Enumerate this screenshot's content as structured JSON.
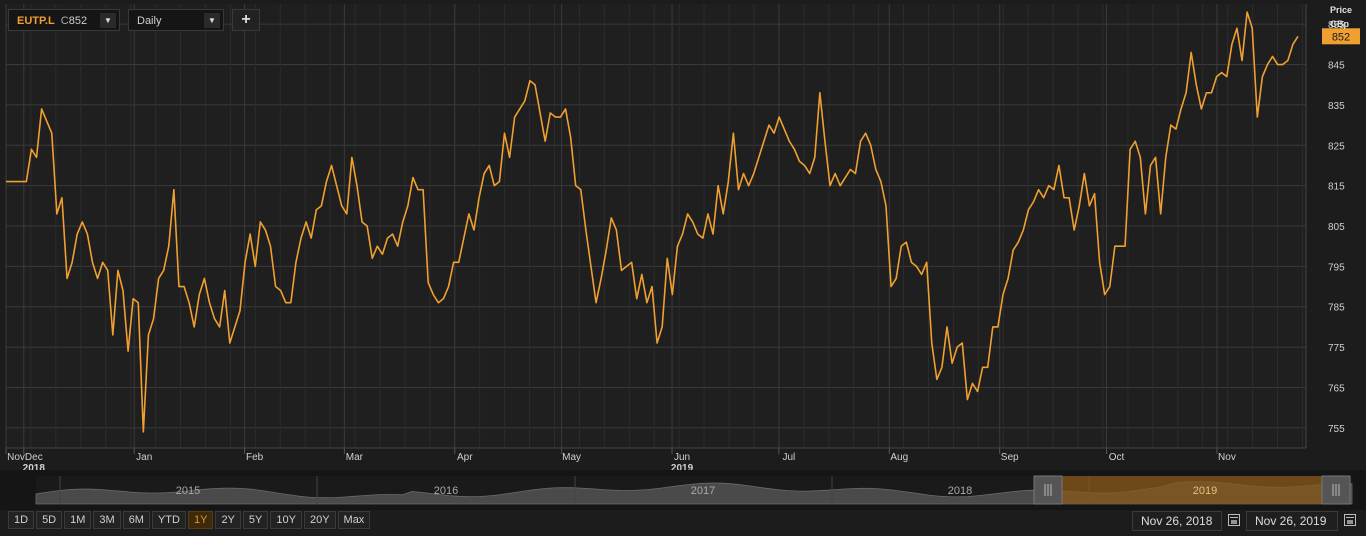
{
  "toolbar": {
    "symbol": "EUTP.L",
    "close_prefix": "C",
    "close_value": "852",
    "interval": "Daily",
    "add_label": "+"
  },
  "axis": {
    "title": "Price",
    "unit": "GBp"
  },
  "ranges": [
    "1D",
    "5D",
    "1M",
    "3M",
    "6M",
    "YTD",
    "1Y",
    "2Y",
    "5Y",
    "10Y",
    "20Y",
    "Max"
  ],
  "active_range": "1Y",
  "date_from": "Nov 26, 2018",
  "date_to": "Nov 26, 2019",
  "colors": {
    "line": "#f0a030",
    "background": "#1c1c1c",
    "grid": "#3a3a3a",
    "last_price_badge": "#f0a030"
  },
  "navigator": {
    "years": [
      "2015",
      "2016",
      "2017",
      "2018",
      "2019"
    ],
    "selected": "2019"
  },
  "chart_data": {
    "type": "line",
    "series": [
      {
        "values": [
          816,
          816,
          816,
          816,
          816,
          824,
          822,
          834,
          831,
          828,
          808,
          812,
          792,
          796,
          803,
          806,
          803,
          796,
          792,
          796,
          794,
          778,
          794,
          789,
          774,
          787,
          786,
          754,
          778,
          782,
          792,
          794,
          800,
          814,
          790,
          790,
          786,
          780,
          788,
          792,
          786,
          782,
          780,
          789,
          776,
          780,
          784,
          796,
          803,
          795,
          806,
          804,
          800,
          790,
          789,
          786,
          786,
          796,
          802,
          806,
          802,
          809,
          810,
          816,
          820,
          815,
          810,
          808,
          822,
          815,
          806,
          805,
          797,
          800,
          798,
          802,
          803,
          800,
          806,
          810,
          817,
          814,
          814,
          791,
          788,
          786,
          787,
          790,
          796,
          796,
          802,
          808,
          804,
          812,
          818,
          820,
          815,
          816,
          828,
          822,
          832,
          834,
          836,
          841,
          840,
          833,
          826,
          833,
          832,
          832,
          834,
          827,
          815,
          814,
          804,
          795,
          786,
          792,
          799,
          807,
          804,
          794,
          795,
          796,
          787,
          793,
          786,
          790,
          776,
          780,
          797,
          788,
          800,
          803,
          808,
          806,
          803,
          802,
          808,
          803,
          815,
          808,
          816,
          828,
          814,
          818,
          815,
          818,
          822,
          826,
          830,
          828,
          832,
          829,
          826,
          824,
          821,
          820,
          818,
          822,
          838,
          826,
          815,
          818,
          815,
          817,
          819,
          818,
          826,
          828,
          825,
          819,
          816,
          810,
          790,
          792,
          800,
          801,
          796,
          795,
          793,
          796,
          776,
          767,
          770,
          780,
          771,
          775,
          776,
          762,
          766,
          764,
          770,
          770,
          780,
          780,
          788,
          792,
          799,
          801,
          804,
          809,
          811,
          814,
          812,
          815,
          814,
          820,
          812,
          812,
          804,
          810,
          818,
          810,
          813,
          796,
          788,
          790,
          800,
          800,
          800,
          824,
          826,
          822,
          808,
          820,
          822,
          808,
          822,
          830,
          829,
          834,
          838,
          848,
          840,
          834,
          838,
          838,
          842,
          843,
          842,
          850,
          854,
          846,
          858,
          854,
          832,
          842,
          845,
          847,
          845,
          845,
          846,
          850,
          852
        ],
        "dates_span": [
          "2018-11-26",
          "2019-11-26"
        ]
      }
    ],
    "x_labels": [
      {
        "label": "Nov",
        "sub": "",
        "date": "2018-11-26"
      },
      {
        "label": "Dec",
        "sub": "2018",
        "date": "2018-12-01"
      },
      {
        "label": "Jan",
        "sub": "",
        "date": "2019-01-01"
      },
      {
        "label": "Feb",
        "sub": "",
        "date": "2019-02-01"
      },
      {
        "label": "Mar",
        "sub": "",
        "date": "2019-03-01"
      },
      {
        "label": "Apr",
        "sub": "",
        "date": "2019-04-01"
      },
      {
        "label": "May",
        "sub": "",
        "date": "2019-05-01"
      },
      {
        "label": "Jun",
        "sub": "2019",
        "date": "2019-06-01"
      },
      {
        "label": "Jul",
        "sub": "",
        "date": "2019-07-01"
      },
      {
        "label": "Aug",
        "sub": "",
        "date": "2019-08-01"
      },
      {
        "label": "Sep",
        "sub": "",
        "date": "2019-09-01"
      },
      {
        "label": "Oct",
        "sub": "",
        "date": "2019-10-01"
      },
      {
        "label": "Nov",
        "sub": "",
        "date": "2019-11-01"
      }
    ],
    "y_ticks": [
      755,
      765,
      775,
      785,
      795,
      805,
      815,
      825,
      835,
      845,
      855
    ],
    "ylim": [
      750,
      860
    ],
    "last_value": 852,
    "grid": true
  }
}
